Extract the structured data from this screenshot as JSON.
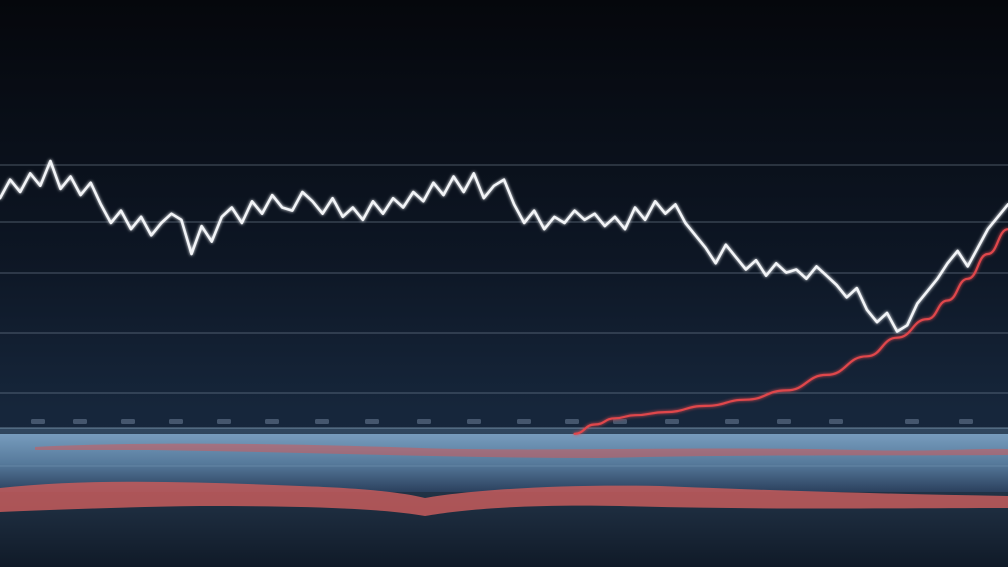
{
  "chart_data": {
    "type": "line",
    "title": "",
    "xlabel": "",
    "ylabel": "",
    "grid": true,
    "legend": "none",
    "ylim": [
      0,
      100
    ],
    "xlim": [
      0,
      100
    ],
    "x_tick_labels": [],
    "y_tick_labels": [],
    "series": [
      {
        "color": "#f2f4f7",
        "x": [
          0,
          1,
          2,
          3,
          4,
          5,
          6,
          7,
          8,
          9,
          10,
          11,
          12,
          13,
          14,
          15,
          16,
          17,
          18,
          19,
          20,
          21,
          22,
          23,
          24,
          25,
          26,
          27,
          28,
          29,
          30,
          31,
          32,
          33,
          34,
          35,
          36,
          37,
          38,
          39,
          40,
          41,
          42,
          43,
          44,
          45,
          46,
          47,
          48,
          49,
          50,
          51,
          52,
          53,
          54,
          55,
          56,
          57,
          58,
          59,
          60,
          61,
          62,
          63,
          64,
          65,
          66,
          67,
          68,
          69,
          70,
          71,
          72,
          73,
          74,
          75,
          76,
          77,
          78,
          79,
          80,
          81,
          82,
          83,
          84,
          85,
          86,
          87,
          88,
          89,
          90,
          91,
          92,
          93,
          94,
          95,
          96,
          97,
          98,
          99,
          100
        ],
        "values": [
          78,
          84,
          80,
          86,
          82,
          90,
          81,
          85,
          79,
          83,
          76,
          70,
          74,
          68,
          72,
          66,
          70,
          73,
          71,
          60,
          69,
          64,
          72,
          75,
          70,
          77,
          73,
          79,
          75,
          74,
          80,
          77,
          73,
          78,
          72,
          75,
          71,
          77,
          73,
          78,
          75,
          80,
          77,
          83,
          79,
          85,
          80,
          86,
          78,
          82,
          84,
          76,
          70,
          74,
          68,
          72,
          70,
          74,
          71,
          73,
          69,
          72,
          68,
          75,
          71,
          77,
          73,
          76,
          70,
          66,
          62,
          57,
          63,
          59,
          55,
          58,
          53,
          57,
          54,
          55,
          52,
          56,
          53,
          50,
          46,
          49,
          42,
          38,
          41,
          35,
          37,
          44,
          48,
          52,
          57,
          61,
          56,
          62,
          68,
          72,
          76
        ]
      },
      {
        "color": "#e0474c",
        "x": [
          57,
          59,
          61,
          63,
          66,
          70,
          74,
          78,
          82,
          86,
          89,
          92,
          94,
          96,
          98,
          100
        ],
        "values": [
          2,
          5,
          7,
          8,
          9,
          11,
          13,
          16,
          21,
          27,
          33,
          39,
          45,
          52,
          60,
          68
        ]
      }
    ]
  }
}
